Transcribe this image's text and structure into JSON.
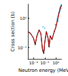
{
  "chart_data": {
    "type": "line",
    "x_label": "Neutron energy (MeV)",
    "y_label": "Cross section (b)",
    "log": true,
    "grid": false,
    "xlim": [
      1e-05,
      10
    ],
    "xticks": [
      {
        "value": 0.0001,
        "label": "10⁻⁴"
      },
      {
        "value": 0.01,
        "label": "10⁻²"
      },
      {
        "value": 1,
        "label": "10⁰"
      }
    ],
    "ylim": [
      0.04,
      3
    ],
    "yticks": [
      {
        "value": 0.1,
        "label": "10⁻¹"
      },
      {
        "value": 1,
        "label": "10⁰"
      }
    ],
    "series": [
      {
        "type": "line",
        "color": "#000000",
        "line_style": "solid",
        "x": [
          1e-05,
          3e-05,
          0.0001,
          0.0002,
          0.0004,
          0.001,
          0.002,
          0.004,
          0.007,
          0.01,
          0.02,
          0.04,
          0.06,
          0.1,
          0.2,
          0.4,
          1,
          2,
          5,
          10
        ],
        "values": [
          0.35,
          0.3,
          0.2,
          0.12,
          0.25,
          0.4,
          0.3,
          0.08,
          0.06,
          0.15,
          0.35,
          0.2,
          0.1,
          0.25,
          0.18,
          0.3,
          0.5,
          0.9,
          2,
          2.8
        ]
      },
      {
        "type": "line",
        "color": "#cc0000",
        "line_style": "solid",
        "x": [
          1e-05,
          3e-05,
          0.0001,
          0.0002,
          0.0004,
          0.001,
          0.002,
          0.004,
          0.007,
          0.01,
          0.02,
          0.04,
          0.06,
          0.1,
          0.2,
          0.4,
          1,
          2,
          5,
          10
        ],
        "values": [
          0.34,
          0.29,
          0.21,
          0.13,
          0.24,
          0.38,
          0.31,
          0.09,
          0.065,
          0.14,
          0.33,
          0.21,
          0.11,
          0.24,
          0.19,
          0.29,
          0.48,
          0.85,
          1.9,
          2.7
        ]
      },
      {
        "type": "scatter",
        "color": "#33bbee",
        "marker": "circle",
        "x": [
          0.005,
          0.01,
          0.5,
          0.8,
          1,
          1.5,
          2,
          2.5,
          3,
          4,
          5,
          6,
          7,
          8,
          9,
          10
        ],
        "values": [
          0.5,
          0.45,
          0.35,
          0.6,
          0.55,
          0.9,
          1.1,
          0.8,
          1.4,
          1.6,
          2.2,
          1.8,
          2.5,
          2.1,
          2.9,
          2.6
        ]
      }
    ]
  }
}
